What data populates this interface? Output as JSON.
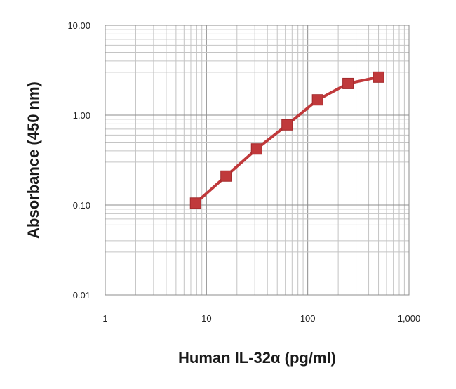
{
  "chart_data": {
    "type": "line",
    "title": "",
    "xlabel": "Human IL-32α (pg/ml)",
    "ylabel": "Absorbance (450 nm)",
    "x_scale": "log",
    "y_scale": "log",
    "xlim": [
      1,
      1000
    ],
    "ylim": [
      0.01,
      10
    ],
    "grid": true,
    "x_ticks": [
      1,
      10,
      100,
      1000
    ],
    "x_tick_labels": [
      "1",
      "10",
      "100",
      "1,000"
    ],
    "y_ticks": [
      0.01,
      0.1,
      1,
      10
    ],
    "y_tick_labels": [
      "0.01",
      "0.10",
      "1.00",
      "10.00"
    ],
    "series": [
      {
        "marker": "square",
        "color": "#c0393b",
        "x": [
          7.8,
          15.6,
          31.25,
          62.5,
          125,
          250,
          500
        ],
        "y": [
          0.105,
          0.21,
          0.42,
          0.78,
          1.48,
          2.25,
          2.65
        ]
      }
    ]
  }
}
